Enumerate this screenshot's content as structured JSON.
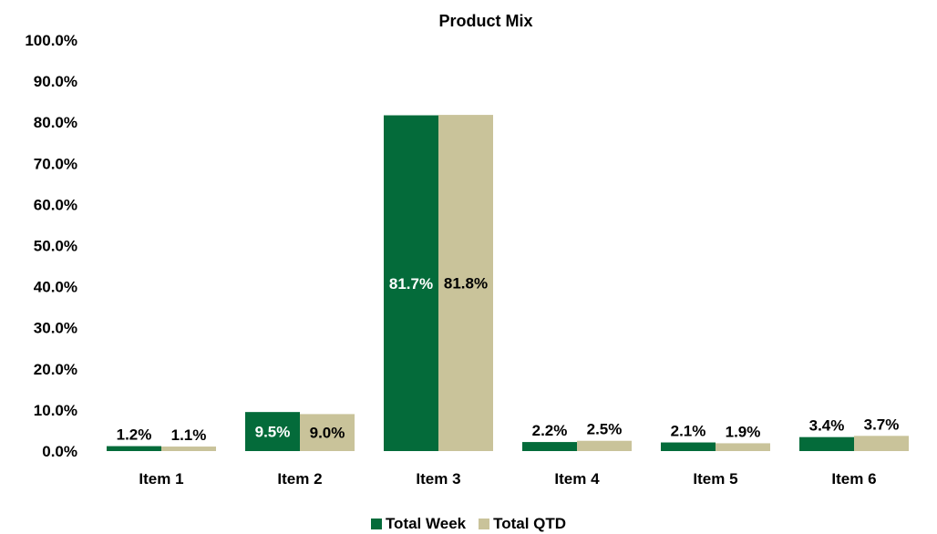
{
  "chart_data": {
    "type": "bar",
    "title": "Product Mix",
    "xlabel": "",
    "ylabel": "",
    "categories": [
      "Item 1",
      "Item 2",
      "Item 3",
      "Item 4",
      "Item 5",
      "Item 6"
    ],
    "series": [
      {
        "name": "Total Week",
        "values": [
          1.2,
          9.5,
          81.7,
          2.2,
          2.1,
          3.4
        ],
        "labels": [
          "1.2%",
          "9.5%",
          "81.7%",
          "2.2%",
          "2.1%",
          "3.4%"
        ],
        "color": "#046b3a"
      },
      {
        "name": "Total QTD",
        "values": [
          1.1,
          9.0,
          81.8,
          2.5,
          1.9,
          3.7
        ],
        "labels": [
          "1.1%",
          "9.0%",
          "81.8%",
          "2.5%",
          "1.9%",
          "3.7%"
        ],
        "color": "#c9c39a"
      }
    ],
    "ylim": [
      0,
      100
    ],
    "yticks": [
      "0.0%",
      "10.0%",
      "20.0%",
      "30.0%",
      "40.0%",
      "50.0%",
      "60.0%",
      "70.0%",
      "80.0%",
      "90.0%",
      "100.0%"
    ],
    "grid": false,
    "legend_position": "bottom"
  }
}
